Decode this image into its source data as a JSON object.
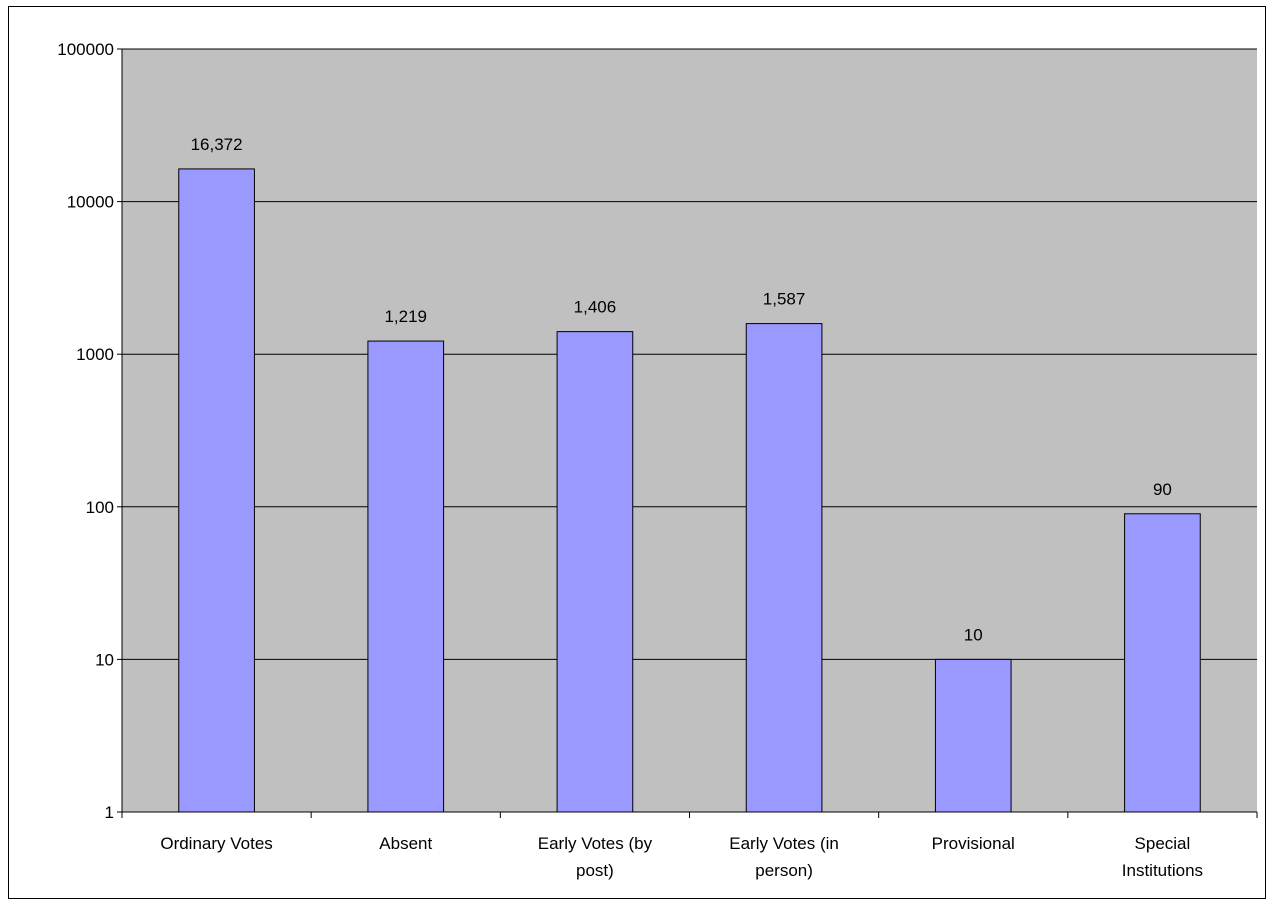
{
  "chart_data": {
    "type": "bar",
    "categories": [
      [
        "Ordinary Votes"
      ],
      [
        "Absent"
      ],
      [
        "Early Votes (by",
        "post)"
      ],
      [
        "Early Votes (in",
        "person)"
      ],
      [
        "Provisional"
      ],
      [
        "Special",
        "Institutions"
      ]
    ],
    "values": [
      16372,
      1219,
      1406,
      1587,
      10,
      90
    ],
    "data_labels": [
      "16,372",
      "1,219",
      "1,406",
      "1,587",
      "10",
      "90"
    ],
    "y_scale": "log",
    "ylim": [
      1,
      100000
    ],
    "y_ticks": [
      1,
      10,
      100,
      1000,
      10000,
      100000
    ],
    "y_tick_labels": [
      "1",
      "10",
      "100",
      "1000",
      "10000",
      "100000"
    ],
    "title": "",
    "xlabel": "",
    "ylabel": "",
    "grid": true,
    "legend": false,
    "colors": {
      "plot_background": "#c0c0c0",
      "bar_fill": "#9999ff",
      "bar_stroke": "#000000",
      "gridline": "#000000"
    }
  }
}
